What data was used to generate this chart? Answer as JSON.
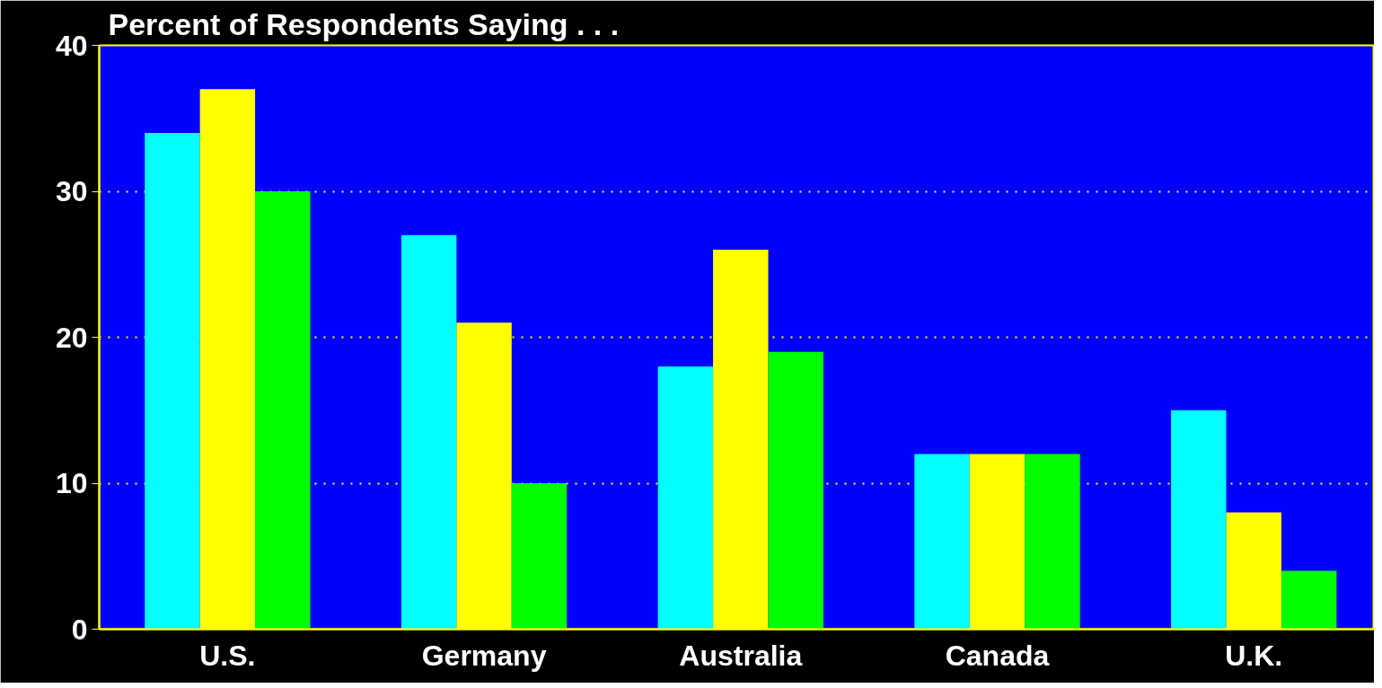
{
  "chart_data": {
    "type": "bar",
    "title": "Percent of Respondents Saying . . .",
    "categories": [
      "U.S.",
      "Germany",
      "Australia",
      "Canada",
      "U.K."
    ],
    "series": [
      {
        "color": "#00ffff",
        "values": [
          34,
          27,
          18,
          12,
          15
        ]
      },
      {
        "color": "#ffff00",
        "values": [
          37,
          21,
          26,
          12,
          8
        ]
      },
      {
        "color": "#00ff00",
        "values": [
          30,
          10,
          19,
          12,
          4
        ]
      }
    ],
    "ylim": [
      0,
      40
    ],
    "yticks": [
      0,
      10,
      20,
      30,
      40
    ],
    "grid": "y"
  }
}
